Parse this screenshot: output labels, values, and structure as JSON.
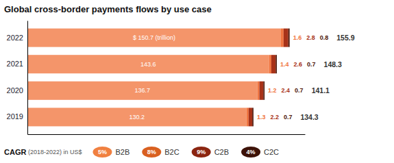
{
  "chart_data": {
    "type": "bar",
    "title": "Global cross-border payments flows by use case",
    "orientation": "horizontal",
    "stacked": true,
    "data_labels": true,
    "tick_labels": "y",
    "categories": [
      "2022",
      "2021",
      "2020",
      "2019"
    ],
    "xlim": [
      0,
      165
    ],
    "series": [
      {
        "name": "B2B",
        "color": "#f4956a",
        "values": [
          150.7,
          143.6,
          136.7,
          130.2
        ],
        "value_labels": [
          "$ 150.7 (trillion)",
          "143.6",
          "136.7",
          "130.2"
        ]
      },
      {
        "name": "B2C",
        "color": "#f07540",
        "values": [
          1.6,
          1.4,
          1.2,
          1.3
        ]
      },
      {
        "name": "C2B",
        "color": "#a83218",
        "values": [
          2.8,
          2.6,
          2.4,
          2.2
        ]
      },
      {
        "name": "C2C",
        "color": "#4e1608",
        "values": [
          0.8,
          0.7,
          0.7,
          0.7
        ]
      }
    ],
    "totals": [
      155.9,
      148.3,
      141.1,
      134.3
    ],
    "cagr": {
      "title": "CAGR",
      "subtitle": " (2018-2022) in US$",
      "values": [
        5,
        8,
        9,
        4
      ],
      "value_labels": [
        "5%",
        "8%",
        "9%",
        "4%"
      ],
      "colors": [
        "#f08040",
        "#d96020",
        "#8b2510",
        "#3d1208"
      ]
    }
  }
}
